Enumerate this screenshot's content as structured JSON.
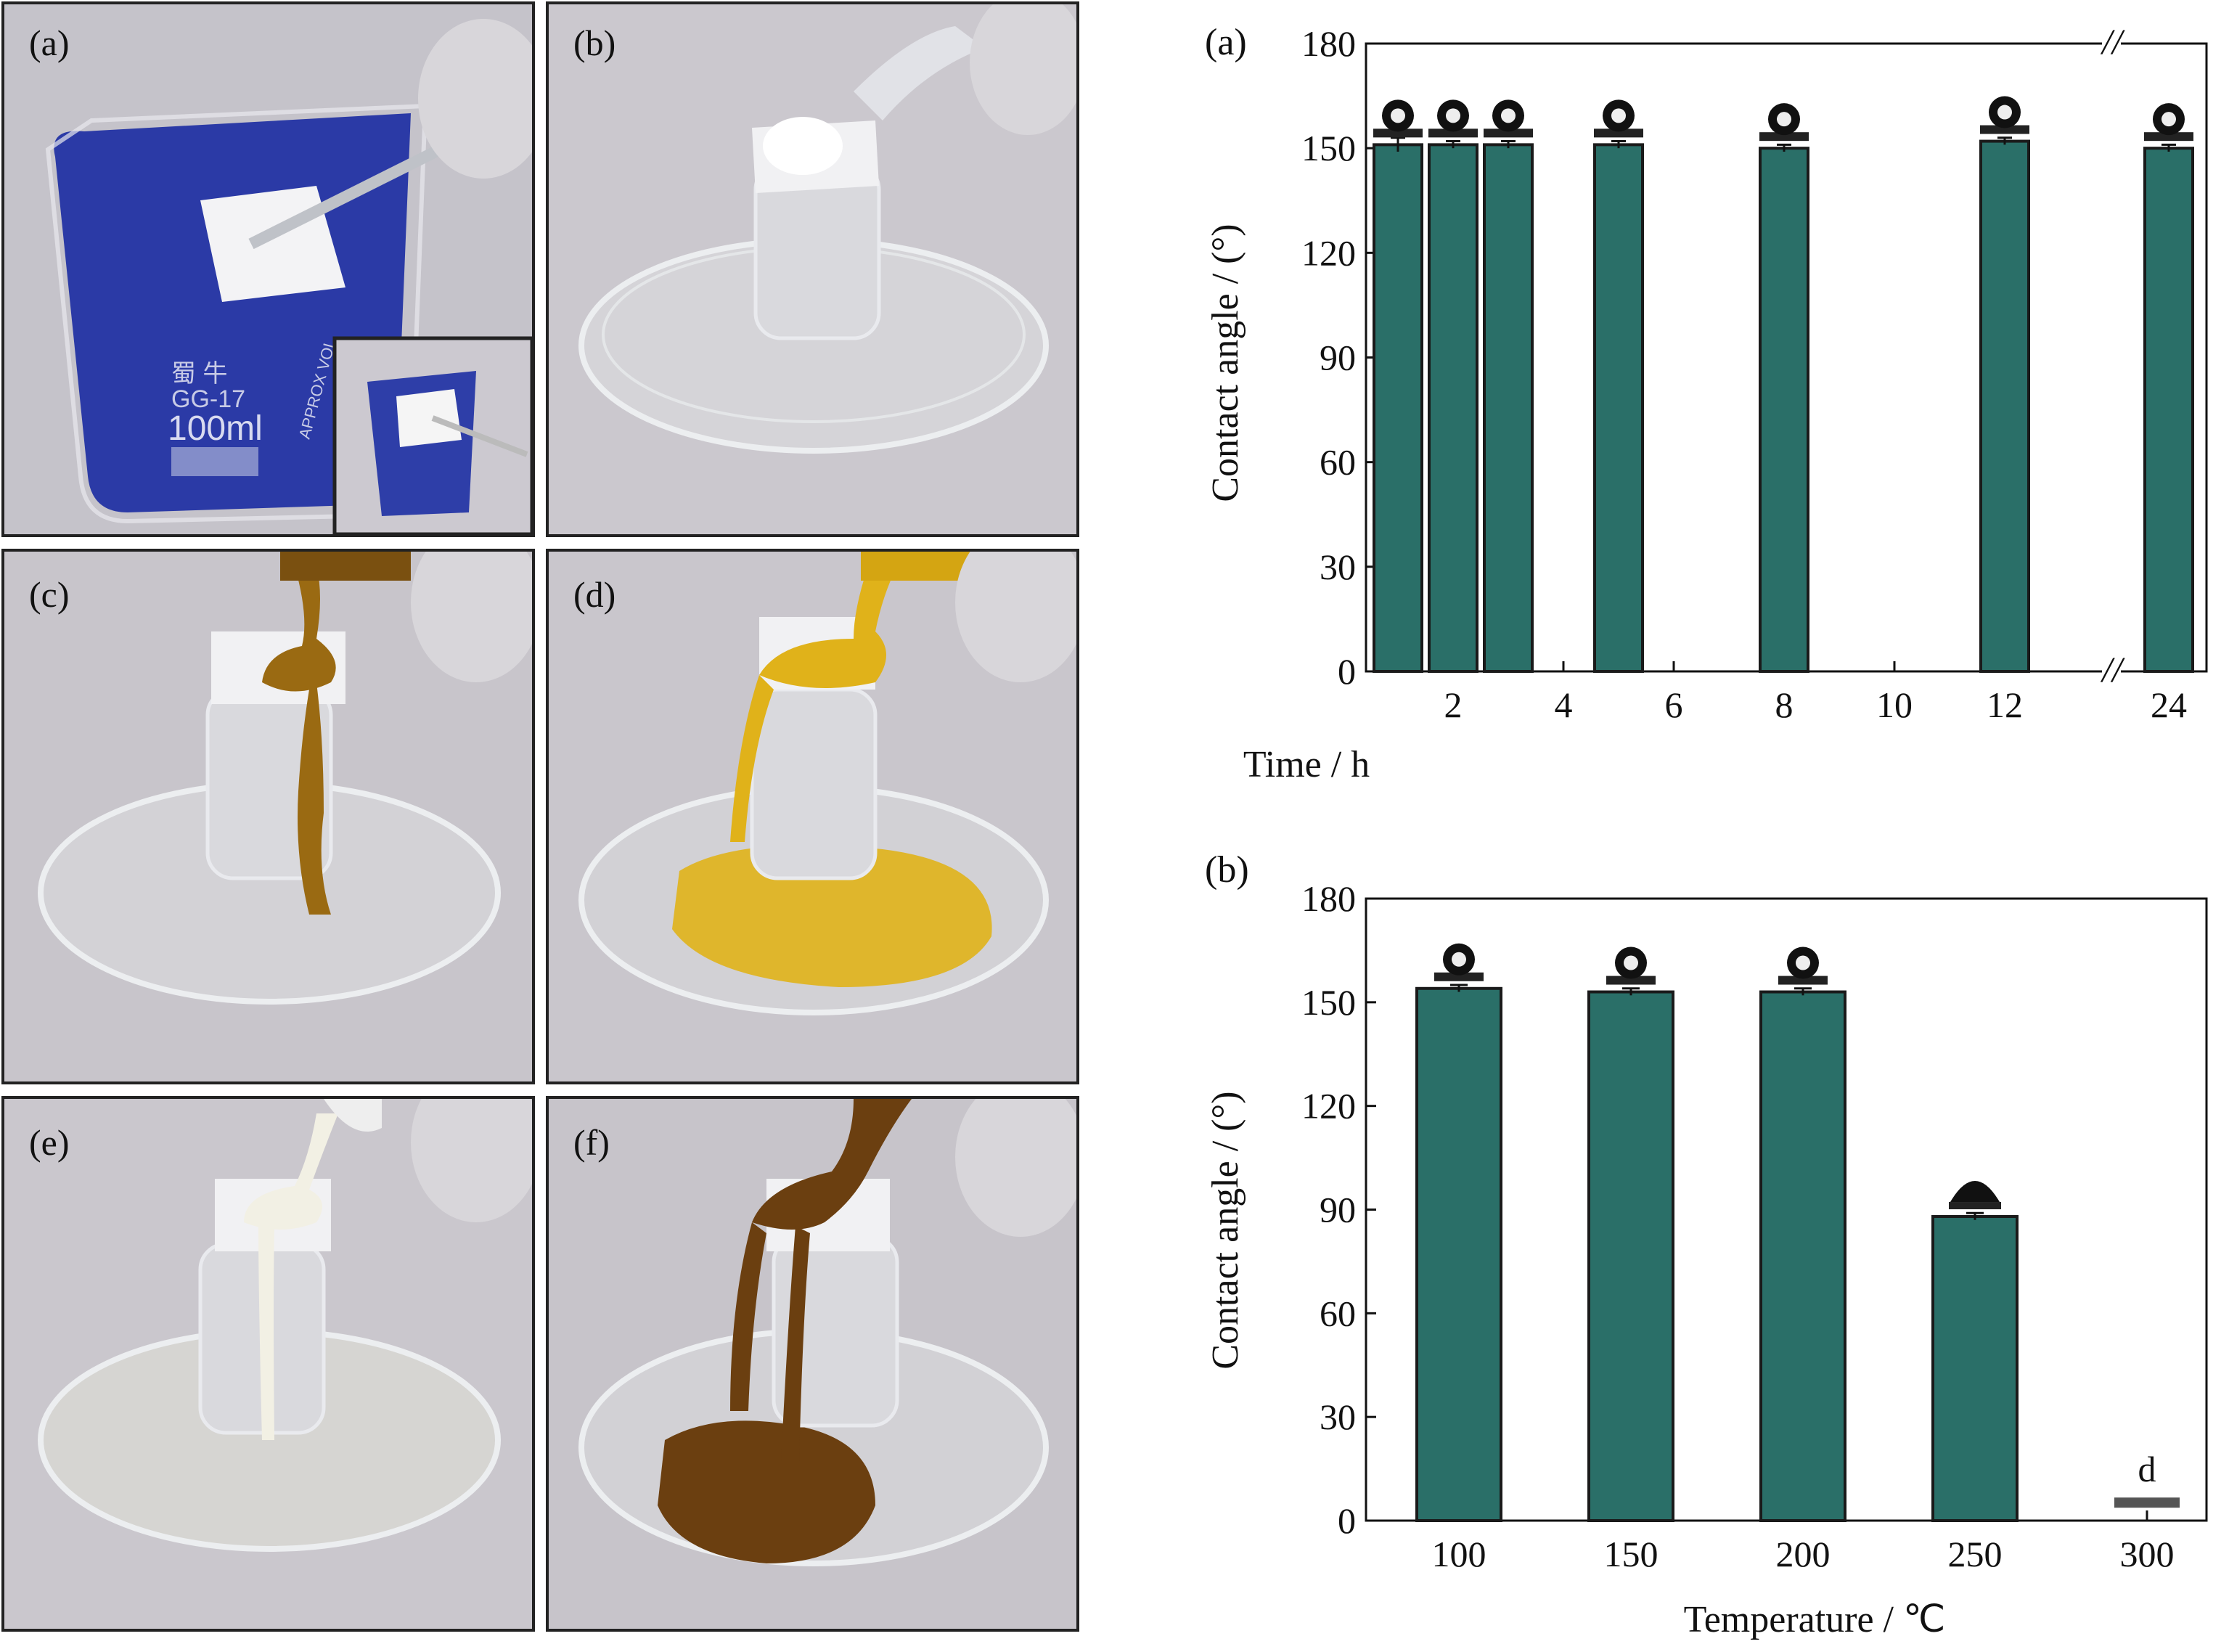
{
  "photo_panels": [
    {
      "label": "(a)"
    },
    {
      "label": "(b)"
    },
    {
      "label": "(c)"
    },
    {
      "label": "(d)"
    },
    {
      "label": "(e)"
    },
    {
      "label": "(f)"
    }
  ],
  "beaker_markings": {
    "brand": "蜀 牛",
    "glass": "GG-17",
    "volume": "100ml",
    "approx": "APPROX VOL"
  },
  "colors": {
    "bar_fill": "#2a6f68",
    "bar_edge": "#1a1a1a",
    "dye_blue": "#1e2fa0",
    "oil_brown": "#9a6a12",
    "oil_yellow": "#e0b21a",
    "milk": "#f2f0e4",
    "sauce_dark": "#6b3f10",
    "photo_bg": "#c9c6cc"
  },
  "chart_data": [
    {
      "panel_label": "(a)",
      "type": "bar",
      "xlabel": "Time / h",
      "ylabel": "Contact angle / (°)",
      "ylim": [
        0,
        180
      ],
      "yticks": [
        0,
        30,
        60,
        90,
        120,
        150,
        180
      ],
      "xticks": [
        "2",
        "4",
        "6",
        "8",
        "10",
        "12",
        "24"
      ],
      "axis_break": "//",
      "x": [
        1,
        2,
        3,
        5,
        8,
        12,
        24
      ],
      "values": [
        151,
        151,
        151,
        151,
        150,
        152,
        150
      ],
      "errors": [
        2,
        1,
        1,
        1,
        1,
        1,
        1
      ],
      "droplet_shape": [
        "sphere",
        "sphere",
        "sphere",
        "sphere",
        "sphere",
        "sphere",
        "sphere"
      ],
      "grid": false
    },
    {
      "panel_label": "(b)",
      "type": "bar",
      "xlabel": "Temperature / ℃",
      "ylabel": "Contact angle / (°)",
      "ylim": [
        0,
        180
      ],
      "yticks": [
        0,
        30,
        60,
        90,
        120,
        150,
        180
      ],
      "categories": [
        "100",
        "150",
        "200",
        "250",
        "300"
      ],
      "values": [
        154,
        153,
        153,
        88,
        5
      ],
      "errors": [
        1,
        1,
        1,
        1,
        0
      ],
      "droplet_shape": [
        "sphere",
        "sphere",
        "sphere",
        "cap",
        "none"
      ],
      "annotations": [
        {
          "category": "300",
          "text": "d"
        }
      ],
      "grid": false
    }
  ]
}
